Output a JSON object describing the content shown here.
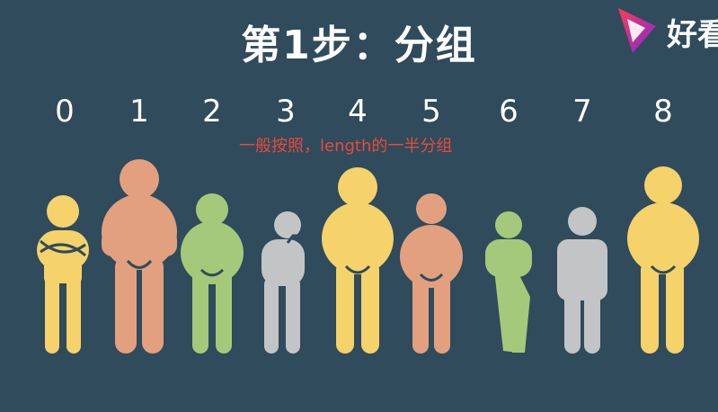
{
  "title": "第1步：分组",
  "logo": {
    "text": "好看",
    "icon": "play-icon"
  },
  "note": "一般按照，length的一半分组",
  "indices": [
    "0",
    "1",
    "2",
    "3",
    "4",
    "5",
    "6",
    "7",
    "8"
  ],
  "colors": {
    "background": "#2f4b5c",
    "yellow": "#f5d26a",
    "orange": "#e3a07e",
    "green": "#a5c97a",
    "gray": "#c3c4c5",
    "note": "#e84a3c"
  }
}
